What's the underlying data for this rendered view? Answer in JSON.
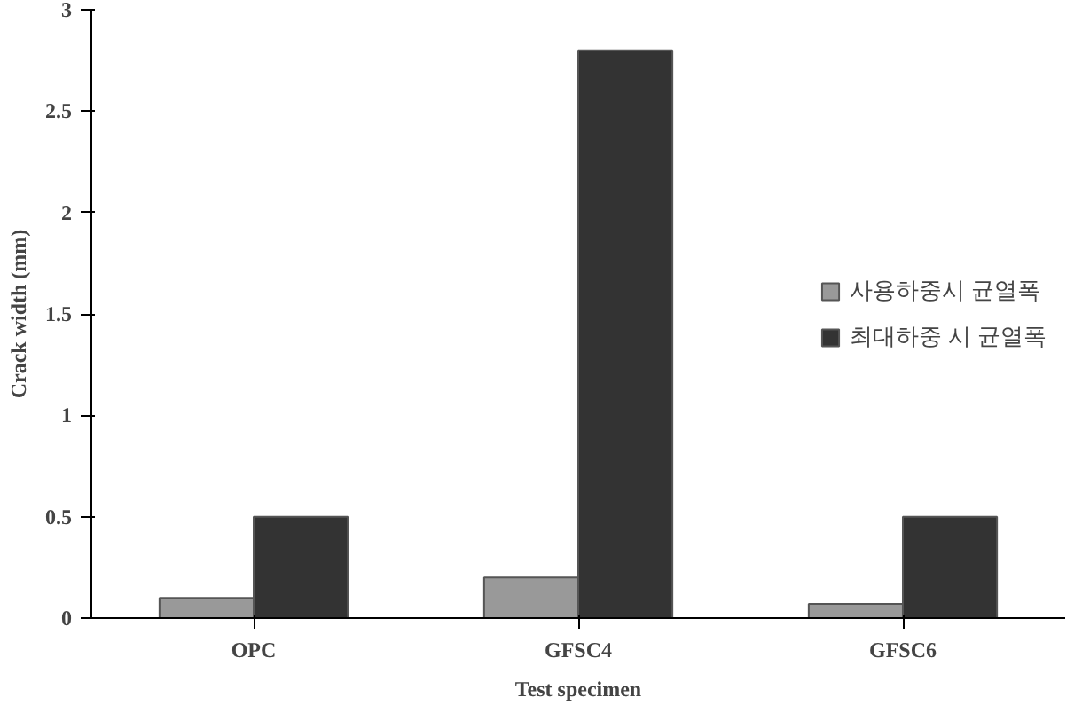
{
  "chart_data": {
    "type": "bar",
    "xlabel": "Test specimen",
    "ylabel": "Crack width (mm)",
    "categories": [
      "OPC",
      "GFSC4",
      "GFSC6"
    ],
    "series": [
      {
        "name": "사용하중시 균열폭",
        "color": "#999999",
        "values": [
          0.1,
          0.2,
          0.07
        ]
      },
      {
        "name": "최대하중 시 균열폭",
        "color": "#333333",
        "values": [
          0.5,
          2.8,
          0.5
        ]
      }
    ],
    "ylim": [
      0,
      3
    ],
    "yticks": [
      0,
      {
        "value": 0.5,
        "label": "0.5"
      },
      1,
      {
        "value": 1.5,
        "label": "1.5"
      },
      2,
      {
        "value": 2.5,
        "label": "2.5"
      },
      3
    ],
    "legend": "right"
  }
}
